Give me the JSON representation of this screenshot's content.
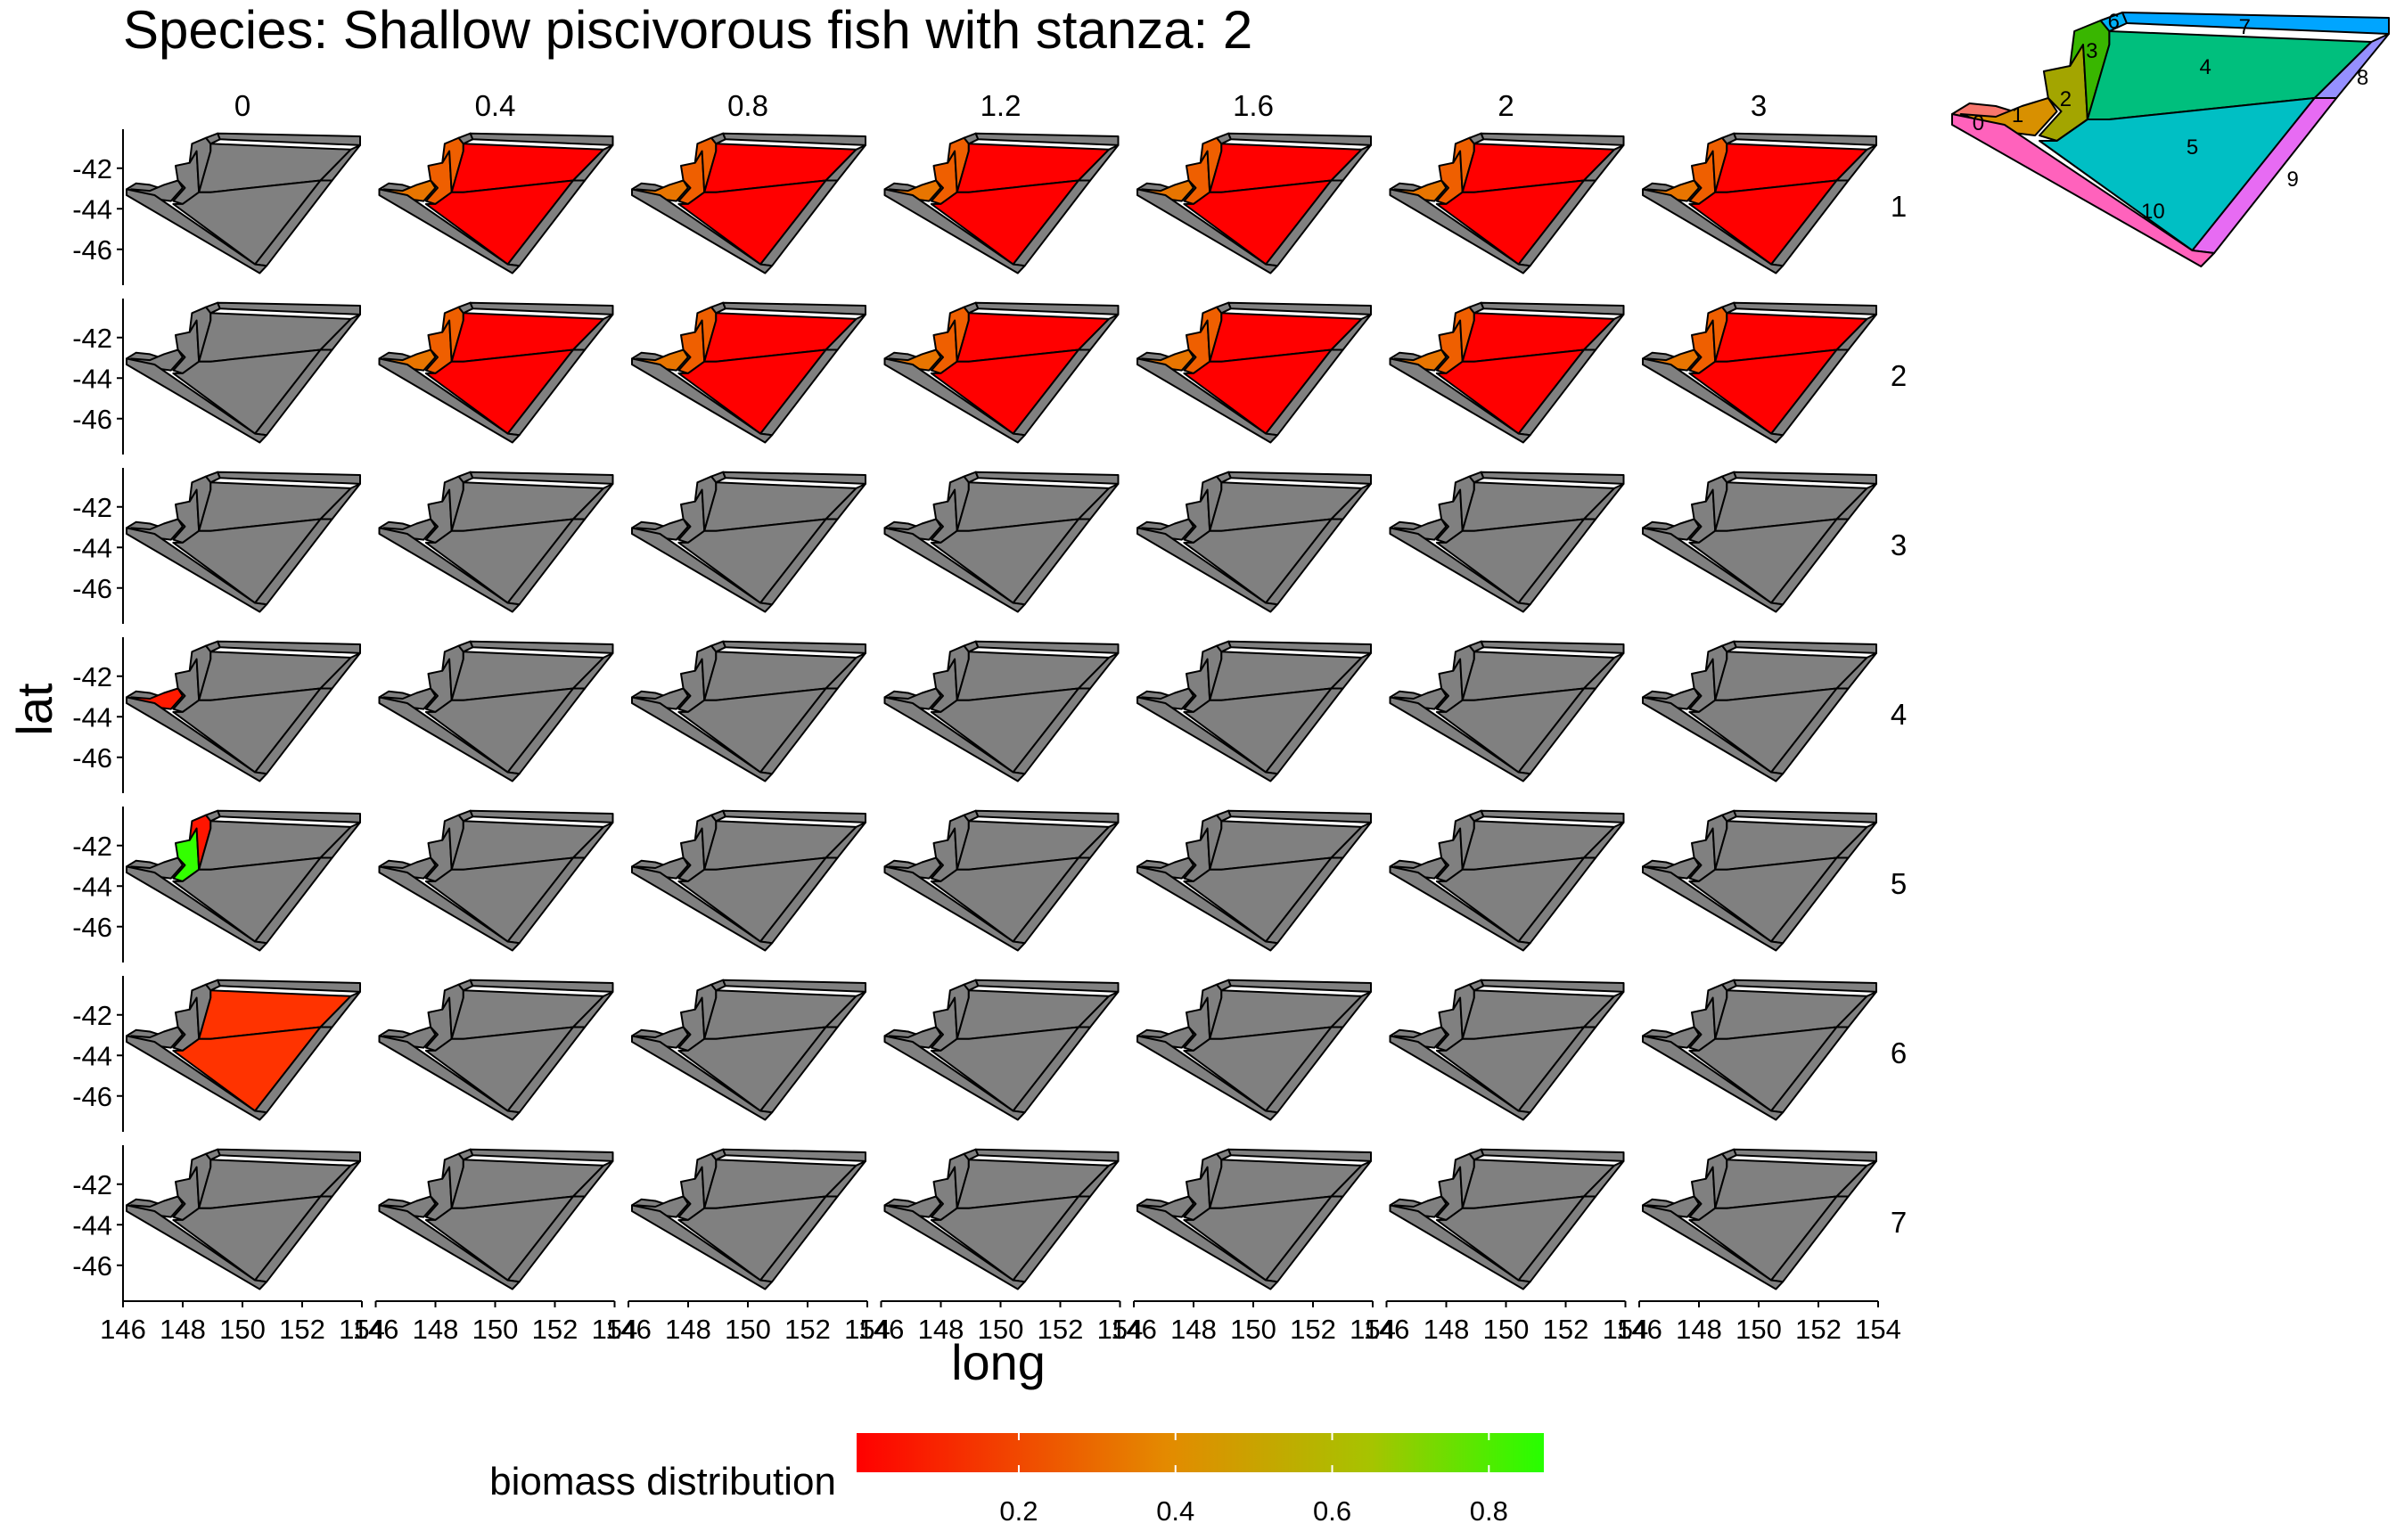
{
  "title": "Species: Shallow piscivorous fish with stanza: 2",
  "axes": {
    "xlabel": "long",
    "ylabel": "lat",
    "x_ticks": [
      "146",
      "148",
      "150",
      "152",
      "154"
    ],
    "y_ticks": [
      "-42",
      "-44",
      "-46"
    ]
  },
  "facets": {
    "columns": [
      "0",
      "0.4",
      "0.8",
      "1.2",
      "1.6",
      "2",
      "3"
    ],
    "rows": [
      "1",
      "2",
      "3",
      "4",
      "5",
      "6",
      "7"
    ]
  },
  "legend": {
    "title": "biomass distribution",
    "ticks": [
      "0.2",
      "0.4",
      "0.6",
      "0.8"
    ],
    "colors": [
      "#ff0000",
      "#e48a00",
      "#26ff00"
    ]
  },
  "map_colors": {
    "nodata": "#808080",
    "outline": "#000000"
  },
  "inset": {
    "boxes": [
      {
        "label": "0",
        "color": "#f8766d"
      },
      {
        "label": "1",
        "color": "#d89000"
      },
      {
        "label": "2",
        "color": "#a3a500"
      },
      {
        "label": "3",
        "color": "#39b600"
      },
      {
        "label": "4",
        "color": "#00bf7d"
      },
      {
        "label": "5",
        "color": "#00bfc4"
      },
      {
        "label": "6",
        "color": "#00b0f6"
      },
      {
        "label": "7",
        "color": "#00a5ff"
      },
      {
        "label": "8",
        "color": "#9590ff"
      },
      {
        "label": "9",
        "color": "#e76bf3"
      },
      {
        "label": "10",
        "color": "#ff62bc"
      }
    ]
  },
  "map_data": {
    "type": "faceted-choropleth",
    "description_of_fill": "each cell shows boxes colored by biomass distribution value; grey = no biomass",
    "cells": [
      {
        "row": "1",
        "col": "0",
        "fills": {}
      },
      {
        "row": "1",
        "col": "0.4",
        "fills": {
          "1": "#e87500",
          "2": "#ef5f00",
          "3": "#ef5f00",
          "4": "#ff0000",
          "5": "#ff0000"
        }
      },
      {
        "row": "1",
        "col": "0.8",
        "fills": {
          "1": "#e87500",
          "2": "#ef5f00",
          "3": "#ef5f00",
          "4": "#ff0000",
          "5": "#ff0000"
        }
      },
      {
        "row": "1",
        "col": "1.2",
        "fills": {
          "1": "#e87500",
          "2": "#ef5f00",
          "3": "#ef5f00",
          "4": "#ff0000",
          "5": "#ff0000"
        }
      },
      {
        "row": "1",
        "col": "1.6",
        "fills": {
          "1": "#e87500",
          "2": "#ef5f00",
          "3": "#ef5f00",
          "4": "#ff0000",
          "5": "#ff0000"
        }
      },
      {
        "row": "1",
        "col": "2",
        "fills": {
          "1": "#e87500",
          "2": "#ef5f00",
          "3": "#ef5f00",
          "4": "#ff0000",
          "5": "#ff0000"
        }
      },
      {
        "row": "1",
        "col": "3",
        "fills": {
          "1": "#e87500",
          "2": "#ef5f00",
          "3": "#ef5f00",
          "4": "#ff0000",
          "5": "#ff0000"
        }
      },
      {
        "row": "2",
        "col": "0",
        "fills": {}
      },
      {
        "row": "2",
        "col": "0.4",
        "fills": {
          "1": "#e87500",
          "2": "#ef5f00",
          "3": "#ef5f00",
          "4": "#ff0000",
          "5": "#ff0000"
        }
      },
      {
        "row": "2",
        "col": "0.8",
        "fills": {
          "1": "#e87500",
          "2": "#ef5f00",
          "3": "#ef5f00",
          "4": "#ff0000",
          "5": "#ff0000"
        }
      },
      {
        "row": "2",
        "col": "1.2",
        "fills": {
          "1": "#e87500",
          "2": "#ef5f00",
          "3": "#ef5f00",
          "4": "#ff0000",
          "5": "#ff0000"
        }
      },
      {
        "row": "2",
        "col": "1.6",
        "fills": {
          "1": "#e87500",
          "2": "#ef5f00",
          "3": "#ef5f00",
          "4": "#ff0000",
          "5": "#ff0000"
        }
      },
      {
        "row": "2",
        "col": "2",
        "fills": {
          "1": "#e87500",
          "2": "#ef5f00",
          "3": "#ef5f00",
          "4": "#ff0000",
          "5": "#ff0000"
        }
      },
      {
        "row": "2",
        "col": "3",
        "fills": {
          "1": "#e87500",
          "2": "#ef5f00",
          "3": "#ef5f00",
          "4": "#ff0000",
          "5": "#ff0000"
        }
      },
      {
        "row": "4",
        "col": "0",
        "fills": {
          "1": "#ff1a00"
        }
      },
      {
        "row": "5",
        "col": "0",
        "fills": {
          "2": "#33ff00",
          "3": "#ff1500"
        }
      },
      {
        "row": "6",
        "col": "0",
        "fills": {
          "4": "#ff3300",
          "5": "#ff3300"
        }
      }
    ]
  }
}
